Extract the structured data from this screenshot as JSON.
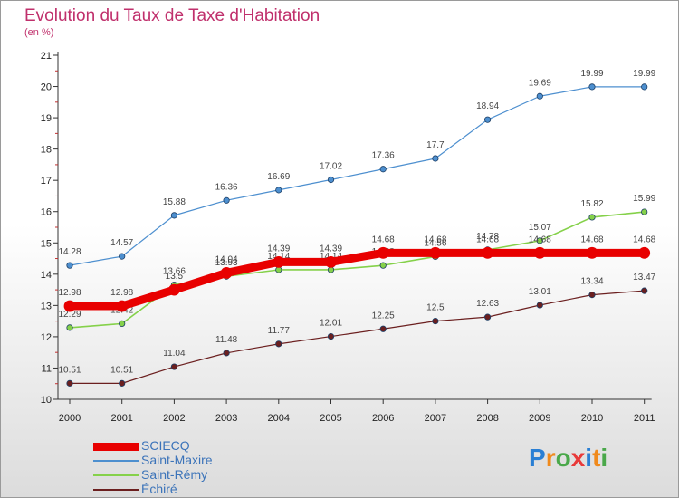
{
  "title": "Evolution du Taux de Taxe d'Habitation",
  "unit": "(en %)",
  "logo": "Proxiti",
  "chart_data": {
    "type": "line",
    "x": [
      "2000",
      "2001",
      "2002",
      "2003",
      "2004",
      "2005",
      "2006",
      "2007",
      "2008",
      "2009",
      "2010",
      "2011"
    ],
    "ylim": [
      10,
      21
    ],
    "yticks": [
      "10",
      "11",
      "12",
      "13",
      "14",
      "15",
      "16",
      "17",
      "18",
      "19",
      "20",
      "21"
    ],
    "grid": false,
    "legend_position": "bottom-left",
    "series": [
      {
        "name": "SCIECQ",
        "color": "#e80000",
        "values": [
          12.98,
          12.98,
          13.5,
          14.04,
          14.39,
          14.39,
          14.68,
          14.68,
          14.68,
          14.68,
          14.68,
          14.68
        ],
        "labels": [
          "12.98",
          "12.98",
          "13.5",
          "14.04",
          "14.39",
          "14.39",
          "14.68",
          "14.68",
          "14.68",
          "14.68",
          "14.68",
          "14.68"
        ]
      },
      {
        "name": "Saint-Maxire",
        "color": "#4d8fcf",
        "values": [
          14.28,
          14.57,
          15.88,
          16.36,
          16.69,
          17.02,
          17.36,
          17.7,
          18.94,
          19.69,
          19.99,
          19.99
        ],
        "labels": [
          "14.28",
          "14.57",
          "15.88",
          "16.36",
          "16.69",
          "17.02",
          "17.36",
          "17.7",
          "18.94",
          "19.69",
          "19.99",
          "19.99"
        ]
      },
      {
        "name": "Saint-Rémy",
        "color": "#85d14a",
        "values": [
          12.29,
          12.42,
          13.66,
          13.93,
          14.14,
          14.14,
          14.28,
          14.56,
          14.78,
          15.07,
          15.82,
          15.99
        ],
        "labels": [
          "12.29",
          "12.42",
          "13.66",
          "13.93",
          "14.14",
          "14.14",
          "14.28",
          "14.56",
          "14.78",
          "15.07",
          "15.82",
          "15.99"
        ]
      },
      {
        "name": "Échiré",
        "color": "#6b1f1f",
        "values": [
          10.51,
          10.51,
          11.04,
          11.48,
          11.77,
          12.01,
          12.25,
          12.5,
          12.63,
          13.01,
          13.34,
          13.47
        ],
        "labels": [
          "10.51",
          "10.51",
          "11.04",
          "11.48",
          "11.77",
          "12.01",
          "12.25",
          "12.5",
          "12.63",
          "13.01",
          "13.34",
          "13.47"
        ]
      }
    ]
  }
}
